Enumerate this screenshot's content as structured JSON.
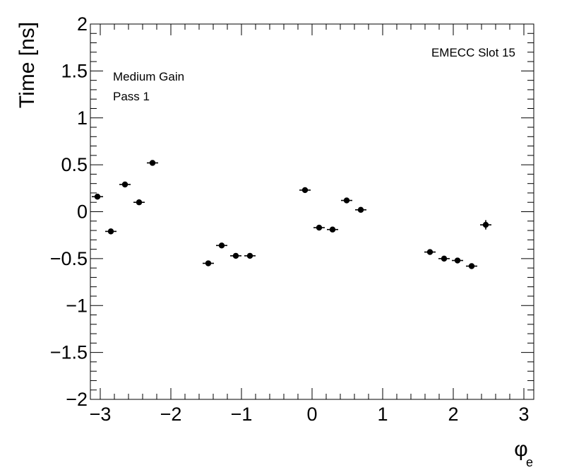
{
  "chart_data": {
    "type": "scatter",
    "title": "",
    "xlabel": "φ",
    "xlabel_subscript": "e",
    "ylabel": "Time [ns]",
    "xlim": [
      -3.14,
      3.14
    ],
    "ylim": [
      -2,
      2
    ],
    "x_ticks": [
      "−3",
      "−2",
      "−1",
      "0",
      "1",
      "2",
      "3"
    ],
    "x_tick_values": [
      -3,
      -2,
      -1,
      0,
      1,
      2,
      3
    ],
    "y_ticks": [
      "2",
      "1.5",
      "1",
      "0.5",
      "0",
      "−0.5",
      "−1",
      "−1.5",
      "−2"
    ],
    "y_tick_values": [
      2,
      1.5,
      1,
      0.5,
      0,
      -0.5,
      -1,
      -1.5,
      -2
    ],
    "grid": false,
    "annotations": {
      "top_right": "EMECC Slot 15",
      "top_left_line1": "Medium Gain",
      "top_left_line2": "Pass 1"
    },
    "x_error": 0.08,
    "points": [
      {
        "x": -3.04,
        "y": 0.16,
        "yerr": 0.02
      },
      {
        "x": -2.85,
        "y": -0.21,
        "yerr": 0.02
      },
      {
        "x": -2.65,
        "y": 0.29,
        "yerr": 0.02
      },
      {
        "x": -2.45,
        "y": 0.1,
        "yerr": 0.02
      },
      {
        "x": -2.26,
        "y": 0.52,
        "yerr": 0.03
      },
      {
        "x": -1.47,
        "y": -0.55,
        "yerr": 0.02
      },
      {
        "x": -1.28,
        "y": -0.36,
        "yerr": 0.02
      },
      {
        "x": -1.08,
        "y": -0.47,
        "yerr": 0.02
      },
      {
        "x": -0.88,
        "y": -0.47,
        "yerr": 0.02
      },
      {
        "x": -0.1,
        "y": 0.23,
        "yerr": 0.03
      },
      {
        "x": 0.1,
        "y": -0.17,
        "yerr": 0.02
      },
      {
        "x": 0.29,
        "y": -0.19,
        "yerr": 0.02
      },
      {
        "x": 0.49,
        "y": 0.12,
        "yerr": 0.02
      },
      {
        "x": 0.69,
        "y": 0.02,
        "yerr": 0.02
      },
      {
        "x": 1.67,
        "y": -0.43,
        "yerr": 0.02
      },
      {
        "x": 1.87,
        "y": -0.5,
        "yerr": 0.02
      },
      {
        "x": 2.06,
        "y": -0.52,
        "yerr": 0.02
      },
      {
        "x": 2.26,
        "y": -0.58,
        "yerr": 0.02
      },
      {
        "x": 2.46,
        "y": -0.14,
        "yerr": 0.05
      }
    ]
  }
}
